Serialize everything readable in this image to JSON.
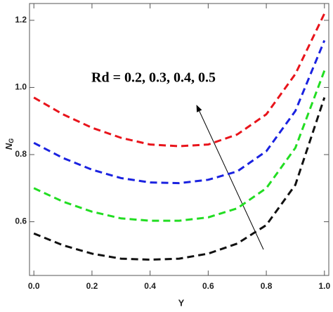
{
  "chart_data": {
    "type": "line",
    "x_label": "Y",
    "y_label": "N",
    "y_label_sub": "G",
    "annotation": "Rd = 0.2, 0.3, 0.4, 0.5",
    "x": [
      0,
      0.1,
      0.2,
      0.3,
      0.4,
      0.5,
      0.6,
      0.7,
      0.8,
      0.9,
      1.0
    ],
    "series": [
      {
        "color": "#e8141b",
        "values": [
          0.97,
          0.92,
          0.88,
          0.85,
          0.83,
          0.825,
          0.83,
          0.86,
          0.92,
          1.04,
          1.22
        ]
      },
      {
        "color": "#1a22e0",
        "values": [
          0.835,
          0.79,
          0.755,
          0.73,
          0.717,
          0.715,
          0.725,
          0.75,
          0.81,
          0.93,
          1.14
        ]
      },
      {
        "color": "#22dd22",
        "values": [
          0.7,
          0.66,
          0.63,
          0.61,
          0.603,
          0.603,
          0.613,
          0.64,
          0.7,
          0.82,
          1.05
        ]
      },
      {
        "color": "#111111",
        "values": [
          0.565,
          0.53,
          0.505,
          0.49,
          0.487,
          0.49,
          0.505,
          0.535,
          0.59,
          0.71,
          0.97
        ]
      }
    ],
    "xlim": [
      -0.015,
      1.015
    ],
    "ylim": [
      0.44,
      1.25
    ],
    "xticks": [
      {
        "value": 0,
        "label": "0.0"
      },
      0.2,
      0.4,
      0.6,
      0.8,
      {
        "value": 1,
        "label": "1.0"
      }
    ],
    "yticks": [
      0.6,
      0.8,
      {
        "value": 1,
        "label": "1.0"
      },
      1.2
    ]
  }
}
